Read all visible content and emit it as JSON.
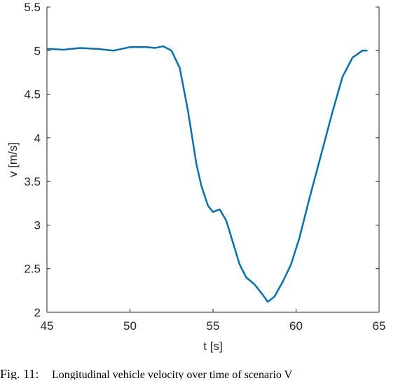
{
  "chart_data": {
    "type": "line",
    "x_label": "t [s]",
    "y_label": "v [m/s]",
    "caption_number": "Fig. 11:",
    "caption": "Longitudinal vehicle velocity over time of scenario V",
    "xlim": [
      45,
      65
    ],
    "xticks": [
      45,
      50,
      55,
      60,
      65
    ],
    "ylim": [
      2,
      5.5
    ],
    "yticks": [
      2,
      2.5,
      3,
      3.5,
      4,
      4.5,
      5,
      5.5
    ],
    "grid": false,
    "series": [
      {
        "color": "#0072bd",
        "x": [
          45,
          46,
          47,
          48,
          49,
          50,
          51,
          51.5,
          52,
          52.5,
          53,
          53.5,
          54,
          54.3,
          54.7,
          55,
          55.4,
          55.8,
          56.2,
          56.6,
          57,
          57.5,
          58,
          58.3,
          58.7,
          59.2,
          59.7,
          60.2,
          60.8,
          61.5,
          62.2,
          62.8,
          63.4,
          64,
          64.3
        ],
        "values": [
          5.02,
          5.01,
          5.03,
          5.02,
          5.0,
          5.04,
          5.04,
          5.03,
          5.05,
          5.0,
          4.8,
          4.3,
          3.7,
          3.45,
          3.22,
          3.15,
          3.18,
          3.05,
          2.8,
          2.55,
          2.4,
          2.32,
          2.2,
          2.12,
          2.18,
          2.35,
          2.55,
          2.85,
          3.3,
          3.8,
          4.3,
          4.7,
          4.92,
          5.0,
          5.0
        ]
      }
    ]
  }
}
